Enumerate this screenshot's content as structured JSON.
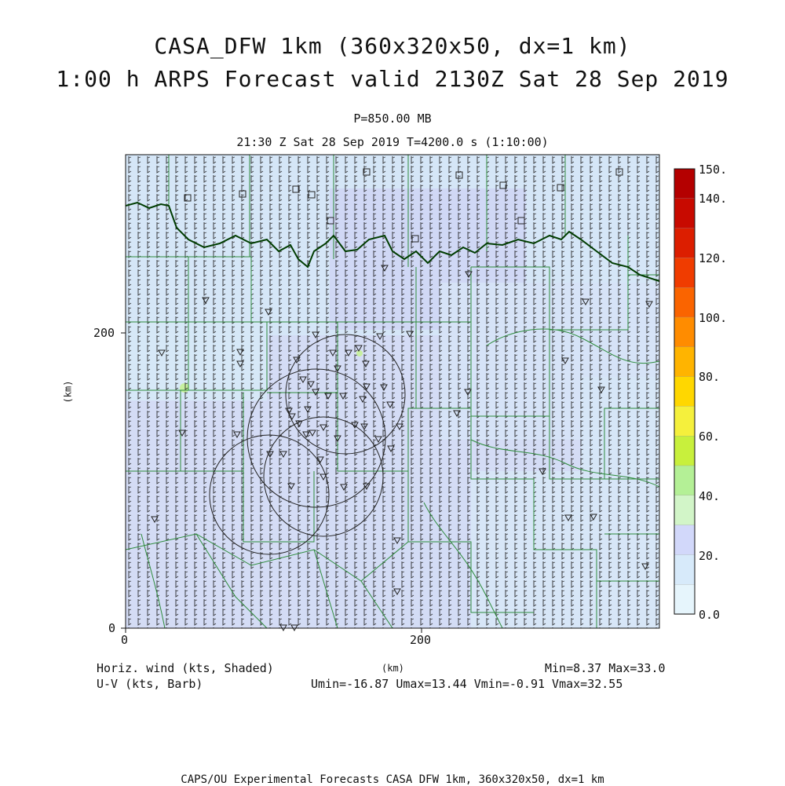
{
  "title_line1": "CASA_DFW 1km (360x320x50, dx=1 km)",
  "title_line2": "1:00 h ARPS Forecast valid 2130Z Sat 28 Sep 2019",
  "level_label": "P=850.00 MB",
  "time_label": "21:30 Z Sat 28 Sep 2019   T=4200.0 s (1:10:00)",
  "axes": {
    "x_label": "(km)",
    "y_label": "(km)",
    "x_ticks": [
      "0",
      "200"
    ],
    "y_ticks": [
      "0",
      "200"
    ]
  },
  "colorbar": {
    "labels": [
      "150.",
      "140.",
      "120.",
      "100.",
      "80.",
      "60.",
      "40.",
      "20.",
      "0.0"
    ],
    "colors": [
      "#b40000",
      "#c80a00",
      "#dc1e00",
      "#f03c00",
      "#fa6400",
      "#ff8c00",
      "#ffb400",
      "#ffd700",
      "#f5f03c",
      "#c8f03c",
      "#b4f096",
      "#d2f5c8",
      "#d2d8fa",
      "#d7eafa",
      "#e6f5fc"
    ]
  },
  "field_color": "#d2d8f5",
  "field_color_light": "#d7e8f8",
  "boundary_colors": {
    "counties": "#2e8b3c",
    "state": "#003c00",
    "radar_rings": "#222222"
  },
  "bottom_left": {
    "line1": "Horiz. wind (kts, Shaded)",
    "line2": "U-V (kts, Barb)"
  },
  "bottom_center_label": "(km)",
  "stats": {
    "minmax": "Min=8.37 Max=33.0",
    "uv": "Umin=-16.87 Umax=13.44 Vmin=-0.91 Vmax=32.55"
  },
  "footer": "CAPS/OU Experimental Forecasts  CASA DFW 1km, 360x320x50, dx=1 km"
}
